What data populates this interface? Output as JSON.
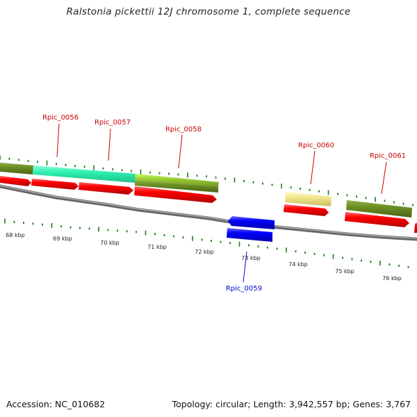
{
  "title": "Ralstonia pickettii 12J chromosome 1, complete sequence",
  "accession": "Accession: NC_010682",
  "topology": "Topology: circular; Length: 3,942,557 bp; Genes: 3,767",
  "scale_labels": [
    "68 kbp",
    "69 kbp",
    "70 kbp",
    "71 kbp",
    "72 kbp",
    "73 kbp",
    "74 kbp",
    "75 kbp",
    "76 kbp"
  ],
  "gene_labels": [
    "Rpic_0056",
    "Rpic_0057",
    "Rpic_0058",
    "Rpic_0059",
    "Rpic_0060",
    "Rpic_0061"
  ],
  "colors": {
    "forward_gene": "#ff0000",
    "reverse_gene": "#0000ff",
    "forward_label": "#cc0000",
    "reverse_label": "#0000cc",
    "tick": "#1a7a1a",
    "backbone": "#777777",
    "feature_olive": "#6b8e23",
    "feature_aqua": "#2ef0b0",
    "feature_lime": "#9acd32",
    "feature_khaki": "#f0e68c"
  }
}
